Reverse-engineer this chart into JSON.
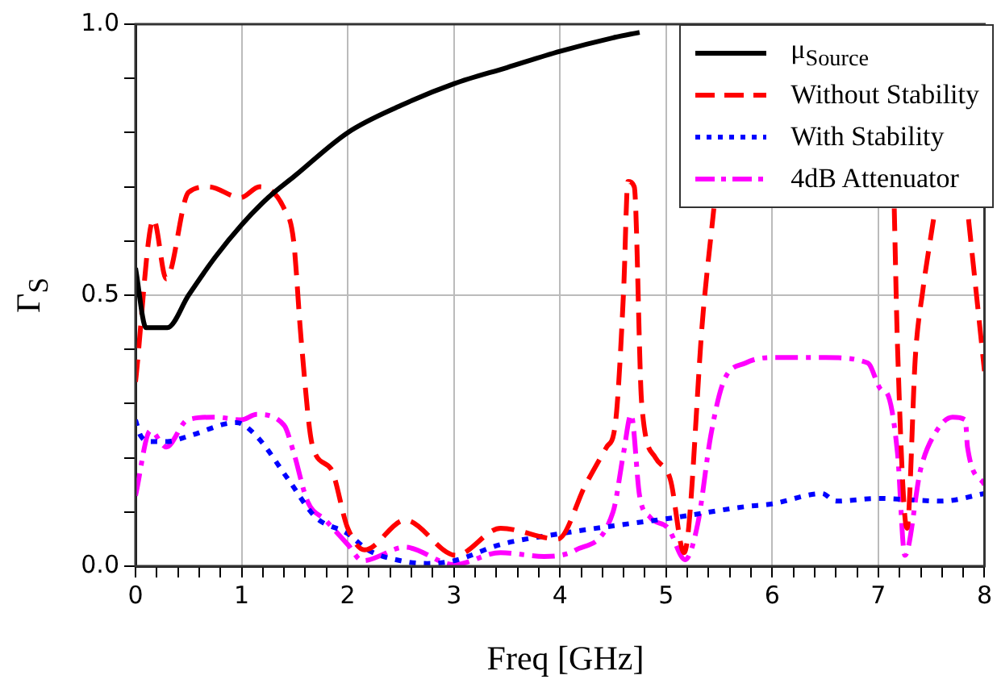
{
  "chart_data": {
    "type": "line",
    "xlabel": "Freq [GHz]",
    "ylabel": "Γ$_{S}$",
    "xlim": [
      0,
      8
    ],
    "ylim": [
      0,
      1
    ],
    "xticks": [
      0,
      {
        "value": 0.2,
        "label": null
      },
      {
        "value": 0.4,
        "label": null
      },
      {
        "value": 0.6,
        "label": null
      },
      {
        "value": 0.8,
        "label": null
      },
      1,
      {
        "value": 1.2,
        "label": null
      },
      {
        "value": 1.4,
        "label": null
      },
      {
        "value": 1.6,
        "label": null
      },
      {
        "value": 1.8,
        "label": null
      },
      2,
      {
        "value": 2.2,
        "label": null
      },
      {
        "value": 2.4,
        "label": null
      },
      {
        "value": 2.6,
        "label": null
      },
      {
        "value": 2.8,
        "label": null
      },
      3,
      {
        "value": 3.2,
        "label": null
      },
      {
        "value": 3.4,
        "label": null
      },
      {
        "value": 3.6,
        "label": null
      },
      {
        "value": 3.8,
        "label": null
      },
      4,
      {
        "value": 4.2,
        "label": null
      },
      {
        "value": 4.4,
        "label": null
      },
      {
        "value": 4.6,
        "label": null
      },
      {
        "value": 4.8,
        "label": null
      },
      5,
      {
        "value": 5.2,
        "label": null
      },
      {
        "value": 5.4,
        "label": null
      },
      {
        "value": 5.6,
        "label": null
      },
      {
        "value": 5.8,
        "label": null
      },
      6,
      {
        "value": 6.2,
        "label": null
      },
      {
        "value": 6.4,
        "label": null
      },
      {
        "value": 6.6,
        "label": null
      },
      {
        "value": 6.8,
        "label": null
      },
      7,
      {
        "value": 7.2,
        "label": null
      },
      {
        "value": 7.4,
        "label": null
      },
      {
        "value": 7.6,
        "label": null
      },
      {
        "value": 7.8,
        "label": null
      },
      8
    ],
    "yticks": [
      {
        "value": 0,
        "label": "0.0"
      },
      {
        "value": 0.1,
        "label": null
      },
      {
        "value": 0.2,
        "label": null
      },
      {
        "value": 0.3,
        "label": null
      },
      {
        "value": 0.4,
        "label": null
      },
      {
        "value": 0.5,
        "label": "0.5"
      },
      {
        "value": 0.6,
        "label": null
      },
      {
        "value": 0.7,
        "label": null
      },
      {
        "value": 0.8,
        "label": null
      },
      {
        "value": 0.9,
        "label": null
      },
      {
        "value": 1,
        "label": "1.0"
      }
    ],
    "grid": true,
    "legend": "top right",
    "marker": "none",
    "series": [
      {
        "name": "μ$_{Source}$",
        "color": "#000000",
        "line_style": "solid",
        "x": [
          0,
          0.1,
          0.3,
          0.5,
          0.75,
          1,
          1.25,
          1.5,
          2,
          2.5,
          3,
          3.5,
          4,
          4.5,
          4.75
        ],
        "values": [
          0.55,
          0.44,
          0.44,
          0.5,
          0.57,
          0.63,
          0.68,
          0.72,
          0.8,
          0.85,
          0.89,
          0.92,
          0.95,
          0.975,
          0.985
        ]
      },
      {
        "name": "Without Stability",
        "color": "#ff0000",
        "line_style": "dashed",
        "x": [
          0,
          0.17,
          0.29,
          0.5,
          0.69,
          0.99,
          1.17,
          1.4,
          1.49,
          1.56,
          1.67,
          1.84,
          2,
          2.16,
          2.54,
          3.02,
          3.44,
          3.98,
          4.24,
          4.44,
          4.52,
          4.6,
          4.64,
          4.7,
          4.77,
          4.9,
          5.04,
          5.17,
          5.35,
          5.45,
          5.5,
          7.1,
          7.15,
          7.18,
          7.27,
          7.35,
          7.42,
          7.52,
          7.6,
          7.8,
          7.85,
          8
        ],
        "values": [
          0.34,
          0.64,
          0.53,
          0.69,
          0.7,
          0.68,
          0.7,
          0.66,
          0.6,
          0.42,
          0.22,
          0.18,
          0.07,
          0.03,
          0.085,
          0.02,
          0.07,
          0.05,
          0.15,
          0.22,
          0.26,
          0.51,
          0.71,
          0.7,
          0.3,
          0.2,
          0.16,
          0.025,
          0.47,
          0.66,
          null,
          null,
          0.66,
          0.41,
          0.07,
          0.39,
          0.51,
          0.64,
          null,
          null,
          0.64,
          0.36
        ]
      },
      {
        "name": "With Stability",
        "color": "#0000ff",
        "line_style": "dotted",
        "x": [
          0,
          0.05,
          0.15,
          0.3,
          0.5,
          0.95,
          1.14,
          1.44,
          1.7,
          2,
          2.19,
          2.5,
          2.75,
          3,
          3.44,
          4,
          4.6,
          5.09,
          5.75,
          6,
          6.47,
          6.6,
          7,
          7.6,
          8
        ],
        "values": [
          0.27,
          0.24,
          0.23,
          0.23,
          0.24,
          0.265,
          0.24,
          0.16,
          0.09,
          0.06,
          0.03,
          0.01,
          0.005,
          0.01,
          0.04,
          0.06,
          0.077,
          0.09,
          0.11,
          0.115,
          0.134,
          0.12,
          0.125,
          0.12,
          0.134
        ]
      },
      {
        "name": "4dB Attenuator",
        "color": "#ff00ff",
        "line_style": "dashdot",
        "x": [
          0,
          0.14,
          0.29,
          0.49,
          0.75,
          1,
          1.14,
          1.4,
          1.49,
          1.62,
          1.79,
          2,
          2.14,
          2.54,
          3,
          3.44,
          3.85,
          4.15,
          4.5,
          4.6,
          4.67,
          4.75,
          4.85,
          5.02,
          5.18,
          5.3,
          5.42,
          5.54,
          5.75,
          6,
          6.5,
          6.9,
          7.03,
          7.08,
          7.18,
          7.25,
          7.4,
          7.55,
          7.7,
          7.82,
          7.84,
          8
        ],
        "values": [
          0.13,
          0.25,
          0.22,
          0.27,
          0.275,
          0.27,
          0.28,
          0.26,
          0.21,
          0.12,
          0.085,
          0.04,
          0.01,
          0.035,
          0.003,
          0.025,
          0.018,
          0.03,
          0.1,
          0.21,
          0.28,
          0.13,
          0.09,
          0.07,
          0.012,
          0.08,
          0.24,
          0.34,
          0.375,
          0.385,
          0.385,
          0.375,
          0.325,
          0.32,
          0.21,
          0.02,
          0.18,
          0.25,
          0.275,
          0.27,
          0.22,
          0.15
        ]
      }
    ]
  }
}
